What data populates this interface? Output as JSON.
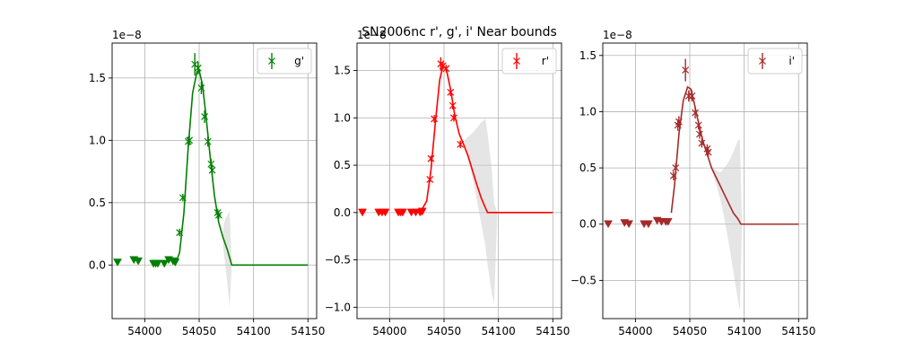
{
  "title": "SN2006nc  r', g', i' Near bounds",
  "chart_data": [
    {
      "type": "scatter",
      "legend": "g'",
      "legend_position": "top-right",
      "color": "#008000",
      "exponent_label": "1e−8",
      "grid": true,
      "xlim": [
        53970,
        54158
      ],
      "ylim": [
        -0.43,
        1.78
      ],
      "x_ticks": [
        54000,
        54050,
        54100,
        54150
      ],
      "x_tick_labels": [
        "54000",
        "54050",
        "54100",
        "54150"
      ],
      "y_ticks": [
        0.0,
        0.5,
        1.0,
        1.5
      ],
      "y_tick_labels": [
        "0.0",
        "0.5",
        "1.0",
        "1.5"
      ],
      "detections": [
        {
          "x": 54032,
          "y": 0.26,
          "err": 0.03
        },
        {
          "x": 54035,
          "y": 0.54,
          "err": 0.03
        },
        {
          "x": 54040,
          "y": 0.99,
          "err": 0.04
        },
        {
          "x": 54041,
          "y": 1.0,
          "err": 0.04
        },
        {
          "x": 54046,
          "y": 1.61,
          "err": 0.09
        },
        {
          "x": 54049,
          "y": 1.58,
          "err": 0.05
        },
        {
          "x": 54052,
          "y": 1.42,
          "err": 0.05
        },
        {
          "x": 54055,
          "y": 1.19,
          "err": 0.05
        },
        {
          "x": 54058,
          "y": 0.99,
          "err": 0.04
        },
        {
          "x": 54061,
          "y": 0.81,
          "err": 0.04
        },
        {
          "x": 54062,
          "y": 0.76,
          "err": 0.04
        },
        {
          "x": 54067,
          "y": 0.42,
          "err": 0.03
        },
        {
          "x": 54068,
          "y": 0.4,
          "err": 0.03
        }
      ],
      "upper_limits": [
        {
          "x": 53975,
          "y": 0.02
        },
        {
          "x": 53990,
          "y": 0.04
        },
        {
          "x": 53994,
          "y": 0.03
        },
        {
          "x": 54008,
          "y": 0.01
        },
        {
          "x": 54010,
          "y": 0.01
        },
        {
          "x": 54012,
          "y": 0.01
        },
        {
          "x": 54018,
          "y": 0.01
        },
        {
          "x": 54022,
          "y": 0.04
        },
        {
          "x": 54026,
          "y": 0.03
        },
        {
          "x": 54028,
          "y": 0.02
        }
      ],
      "model_curve": {
        "x": [
          54028,
          54032,
          54036,
          54040,
          54044,
          54048,
          54050,
          54053,
          54056,
          54060,
          54064,
          54068,
          54072,
          54076,
          54080,
          54100,
          54150
        ],
        "y": [
          0.0,
          0.1,
          0.42,
          0.95,
          1.38,
          1.55,
          1.56,
          1.45,
          1.22,
          0.88,
          0.56,
          0.34,
          0.22,
          0.12,
          0.0,
          0.0,
          0.0
        ]
      },
      "uncertainty_band": {
        "x": [
          54072,
          54074,
          54076,
          54078,
          54080
        ],
        "upper": [
          0.3,
          0.37,
          0.4,
          0.43,
          0.0
        ],
        "lower": [
          0.15,
          0.0,
          -0.15,
          -0.34,
          0.0
        ]
      }
    },
    {
      "type": "scatter",
      "legend": "r'",
      "legend_position": "top-right",
      "color": "#ff0000",
      "exponent_label": "1e−8",
      "grid": true,
      "xlim": [
        53970,
        54158
      ],
      "ylim": [
        -1.12,
        1.79
      ],
      "x_ticks": [
        54000,
        54050,
        54100,
        54150
      ],
      "x_tick_labels": [
        "54000",
        "54050",
        "54100",
        "54150"
      ],
      "y_ticks": [
        -1.0,
        -0.5,
        0.0,
        0.5,
        1.0,
        1.5
      ],
      "y_tick_labels": [
        "−1.0",
        "−0.5",
        "0.0",
        "0.5",
        "1.0",
        "1.5"
      ],
      "detections": [
        {
          "x": 54037,
          "y": 0.35,
          "err": 0.03
        },
        {
          "x": 54038,
          "y": 0.57,
          "err": 0.03
        },
        {
          "x": 54041,
          "y": 0.99,
          "err": 0.04
        },
        {
          "x": 54047,
          "y": 1.57,
          "err": 0.07
        },
        {
          "x": 54049,
          "y": 1.55,
          "err": 0.04
        },
        {
          "x": 54052,
          "y": 1.52,
          "err": 0.04
        },
        {
          "x": 54056,
          "y": 1.27,
          "err": 0.04
        },
        {
          "x": 54058,
          "y": 1.13,
          "err": 0.04
        },
        {
          "x": 54059,
          "y": 1.0,
          "err": 0.04
        },
        {
          "x": 54065,
          "y": 0.72,
          "err": 0.04
        }
      ],
      "upper_limits": [
        {
          "x": 53975,
          "y": 0.0
        },
        {
          "x": 53990,
          "y": 0.0
        },
        {
          "x": 53993,
          "y": 0.0
        },
        {
          "x": 53996,
          "y": 0.0
        },
        {
          "x": 54008,
          "y": 0.0
        },
        {
          "x": 54010,
          "y": 0.0
        },
        {
          "x": 54012,
          "y": 0.0
        },
        {
          "x": 54020,
          "y": 0.0
        },
        {
          "x": 54024,
          "y": 0.0
        },
        {
          "x": 54028,
          "y": 0.0
        },
        {
          "x": 54030,
          "y": 0.01
        }
      ],
      "model_curve": {
        "x": [
          54028,
          54034,
          54038,
          54042,
          54046,
          54049,
          54052,
          54056,
          54060,
          54064,
          54068,
          54072,
          54076,
          54080,
          54084,
          54088,
          54090,
          54100,
          54150
        ],
        "y": [
          0.0,
          0.12,
          0.45,
          0.95,
          1.4,
          1.55,
          1.52,
          1.3,
          1.02,
          0.83,
          0.72,
          0.6,
          0.45,
          0.3,
          0.16,
          0.05,
          0.0,
          0.0,
          0.0
        ]
      },
      "uncertainty_band": {
        "x": [
          54068,
          54072,
          54076,
          54080,
          54084,
          54088,
          54090,
          54094,
          54096,
          54099
        ],
        "upper": [
          0.75,
          0.8,
          0.84,
          0.89,
          0.95,
          0.99,
          0.84,
          0.44,
          0.1,
          0.0
        ],
        "lower": [
          0.7,
          0.58,
          0.38,
          0.14,
          -0.1,
          -0.35,
          -0.55,
          -0.86,
          -0.96,
          0.0
        ]
      }
    },
    {
      "type": "scatter",
      "legend": "i'",
      "legend_position": "top-right",
      "color": "#a52a2a",
      "exponent_label": "1e−8",
      "grid": true,
      "xlim": [
        53970,
        54158
      ],
      "ylim": [
        -0.84,
        1.61
      ],
      "x_ticks": [
        54000,
        54050,
        54100,
        54150
      ],
      "x_tick_labels": [
        "54000",
        "54050",
        "54100",
        "54150"
      ],
      "y_ticks": [
        -0.5,
        0.0,
        0.5,
        1.0,
        1.5
      ],
      "y_tick_labels": [
        "−0.5",
        "0.0",
        "0.5",
        "1.0",
        "1.5"
      ],
      "detections": [
        {
          "x": 54035,
          "y": 0.43,
          "err": 0.04
        },
        {
          "x": 54037,
          "y": 0.5,
          "err": 0.04
        },
        {
          "x": 54039,
          "y": 0.88,
          "err": 0.05
        },
        {
          "x": 54040,
          "y": 0.91,
          "err": 0.05
        },
        {
          "x": 54046,
          "y": 1.37,
          "err": 0.1
        },
        {
          "x": 54049,
          "y": 1.14,
          "err": 0.05
        },
        {
          "x": 54052,
          "y": 1.14,
          "err": 0.05
        },
        {
          "x": 54055,
          "y": 0.99,
          "err": 0.05
        },
        {
          "x": 54058,
          "y": 0.88,
          "err": 0.04
        },
        {
          "x": 54059,
          "y": 0.8,
          "err": 0.04
        },
        {
          "x": 54061,
          "y": 0.72,
          "err": 0.04
        },
        {
          "x": 54066,
          "y": 0.67,
          "err": 0.04
        },
        {
          "x": 54067,
          "y": 0.64,
          "err": 0.04
        }
      ],
      "upper_limits": [
        {
          "x": 53975,
          "y": 0.0
        },
        {
          "x": 53990,
          "y": 0.01
        },
        {
          "x": 53994,
          "y": 0.0
        },
        {
          "x": 54008,
          "y": 0.0
        },
        {
          "x": 54012,
          "y": 0.0
        },
        {
          "x": 54020,
          "y": 0.03
        },
        {
          "x": 54024,
          "y": 0.02
        },
        {
          "x": 54028,
          "y": 0.02
        },
        {
          "x": 54030,
          "y": 0.02
        }
      ],
      "model_curve": {
        "x": [
          54033,
          54036,
          54040,
          54044,
          54048,
          54051,
          54054,
          54058,
          54062,
          54066,
          54070,
          54074,
          54078,
          54082,
          54086,
          54090,
          54094,
          54097,
          54100,
          54150
        ],
        "y": [
          0.1,
          0.35,
          0.8,
          1.1,
          1.22,
          1.2,
          1.08,
          0.9,
          0.74,
          0.62,
          0.5,
          0.42,
          0.34,
          0.26,
          0.18,
          0.1,
          0.05,
          0.0,
          0.0,
          0.0
        ]
      },
      "uncertainty_band": {
        "x": [
          54070,
          54074,
          54078,
          54082,
          54086,
          54090,
          54094,
          54096,
          54098
        ],
        "upper": [
          0.52,
          0.48,
          0.46,
          0.5,
          0.56,
          0.64,
          0.74,
          0.76,
          0.0
        ],
        "lower": [
          0.48,
          0.36,
          0.22,
          0.04,
          -0.18,
          -0.42,
          -0.66,
          -0.77,
          0.0
        ]
      }
    }
  ]
}
